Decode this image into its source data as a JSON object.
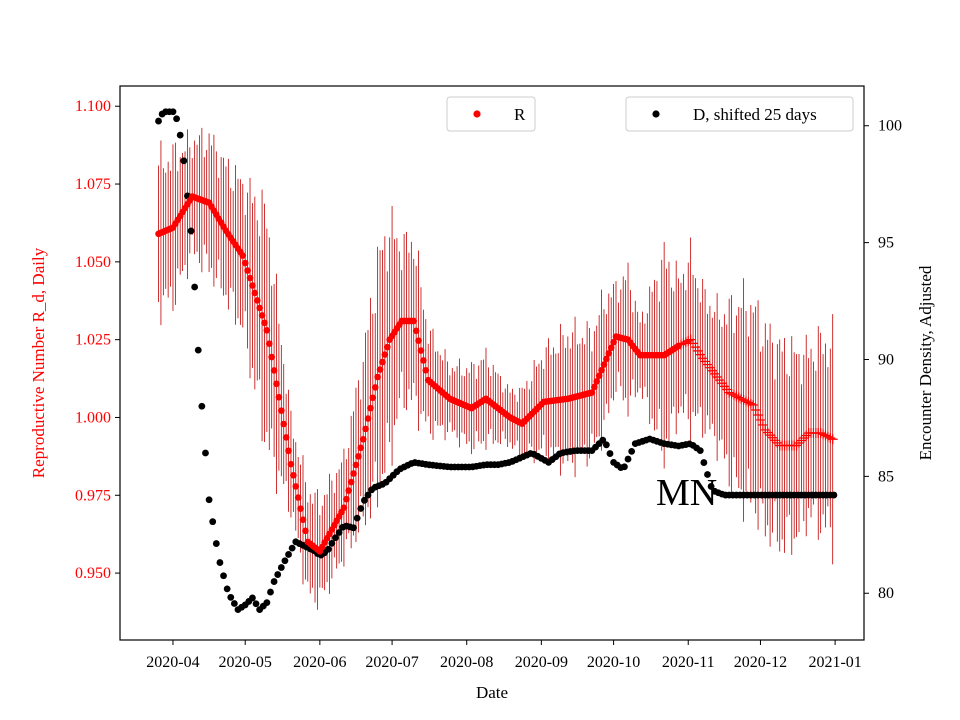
{
  "chart_data": {
    "type": "scatter",
    "title": "",
    "xlabel": "Date",
    "ylabel_left": "Reproductive Number R_d, Daily",
    "ylabel_right": "Encounter Density, Adjusted",
    "annotation": "MN",
    "colors": {
      "r_series": "#ff0000",
      "r_errorbar": "#c00000",
      "d_series": "#000000",
      "left_axis_text": "#ff0000"
    },
    "x_ticks": [
      "2020-04",
      "2020-05",
      "2020-06",
      "2020-07",
      "2020-08",
      "2020-09",
      "2020-10",
      "2020-11",
      "2020-12",
      "2021-01"
    ],
    "x_tick_days": [
      91,
      121,
      152,
      182,
      213,
      244,
      274,
      305,
      335,
      366
    ],
    "xlim_days": [
      69,
      378
    ],
    "ylim_left": [
      0.9285,
      1.1065
    ],
    "ylim_right": [
      78.0,
      101.7
    ],
    "y_ticks_left": [
      "0.950",
      "0.975",
      "1.000",
      "1.025",
      "1.050",
      "1.075",
      "1.100"
    ],
    "y_ticks_right": [
      "80",
      "85",
      "90",
      "95",
      "100"
    ],
    "series": [
      {
        "name": "R",
        "axis": "left",
        "solid_until_day": 301,
        "x_days": [
          85,
          91,
          99,
          106,
          113,
          120,
          130,
          140,
          147,
          152,
          162,
          170,
          176,
          181,
          186,
          191,
          197,
          206,
          215,
          221,
          226,
          231,
          236,
          245,
          255,
          265,
          270,
          275,
          280,
          285,
          295,
          301,
          306,
          311,
          317,
          322,
          327,
          332,
          337,
          343,
          350,
          355,
          360,
          365
        ],
        "values": [
          1.059,
          1.061,
          1.071,
          1.069,
          1.06,
          1.052,
          1.028,
          0.985,
          0.96,
          0.957,
          0.971,
          0.993,
          1.013,
          1.025,
          1.031,
          1.031,
          1.012,
          1.006,
          1.003,
          1.006,
          1.003,
          1.0,
          0.998,
          1.005,
          1.006,
          1.008,
          1.017,
          1.026,
          1.025,
          1.02,
          1.02,
          1.023,
          1.025,
          1.019,
          1.013,
          1.008,
          1.006,
          1.004,
          0.996,
          0.991,
          0.991,
          0.995,
          0.995,
          0.993
        ],
        "errorbar_halfwidth": [
          0.022,
          0.022,
          0.017,
          0.02,
          0.02,
          0.022,
          0.035,
          0.014,
          0.016,
          0.015,
          0.015,
          0.025,
          0.035,
          0.035,
          0.023,
          0.025,
          0.015,
          0.01,
          0.012,
          0.013,
          0.01,
          0.008,
          0.01,
          0.015,
          0.02,
          0.018,
          0.02,
          0.015,
          0.02,
          0.01,
          0.03,
          0.02,
          0.025,
          0.02,
          0.02,
          0.025,
          0.03,
          0.03,
          0.03,
          0.03,
          0.028,
          0.025,
          0.028,
          0.03
        ]
      },
      {
        "name": "D, shifted 25 days",
        "axis": "right",
        "x_days": [
          85,
          87,
          91,
          93,
          95,
          97,
          99,
          101,
          103,
          106,
          110,
          114,
          118,
          121,
          124,
          127,
          130,
          133,
          137,
          142,
          146,
          150,
          152,
          155,
          158,
          162,
          166,
          170,
          174,
          179,
          185,
          191,
          197,
          206,
          215,
          221,
          226,
          231,
          240,
          247,
          252,
          258,
          265,
          270,
          274,
          278,
          283,
          289,
          295,
          301,
          306,
          310,
          315,
          320,
          331,
          366
        ],
        "values": [
          100.2,
          100.6,
          100.6,
          100.2,
          99.0,
          97.0,
          95.0,
          91.2,
          88.0,
          84.0,
          81.5,
          80.0,
          79.3,
          79.5,
          79.8,
          79.3,
          79.6,
          80.5,
          81.3,
          82.2,
          82.0,
          81.8,
          81.6,
          81.8,
          82.3,
          82.9,
          82.8,
          83.9,
          84.5,
          84.7,
          85.3,
          85.6,
          85.5,
          85.4,
          85.4,
          85.5,
          85.5,
          85.6,
          86.0,
          85.6,
          86.0,
          86.1,
          86.1,
          86.6,
          85.6,
          85.3,
          86.4,
          86.6,
          86.4,
          86.3,
          86.4,
          86.1,
          84.4,
          84.2,
          84.2,
          84.2
        ]
      }
    ],
    "legend": [
      {
        "label": "R",
        "position": "top-center"
      },
      {
        "label": "D, shifted 25 days",
        "position": "top-right"
      }
    ]
  }
}
